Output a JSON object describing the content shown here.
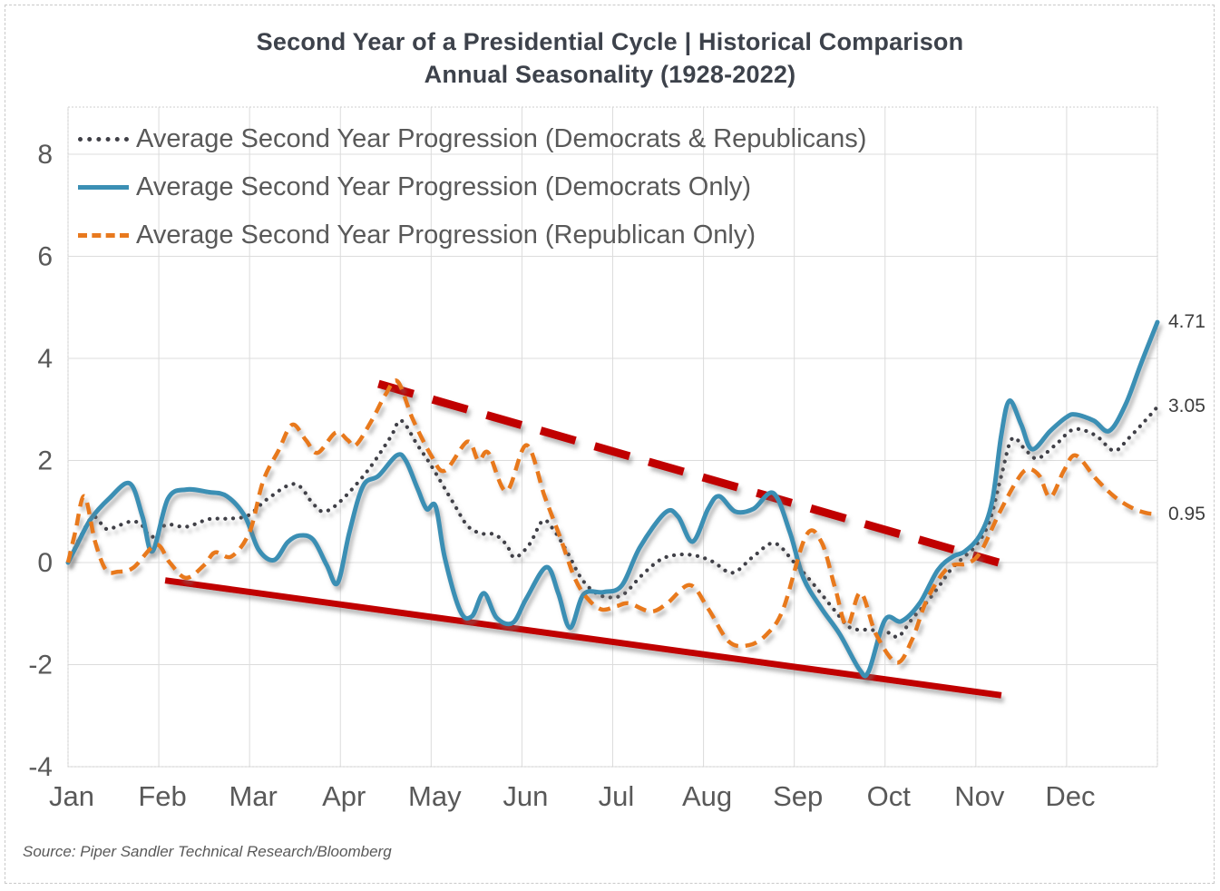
{
  "title": {
    "line1": "Second Year of a Presidential Cycle | Historical Comparison",
    "line2": "Annual Seasonality (1928-2022)"
  },
  "source": "Source: Piper Sandler Technical Research/Bloomberg",
  "colors": {
    "combined_line": "#3f3f46",
    "democrat_line": "#3b8fb4",
    "republican_line": "#e8791e",
    "trend_line": "#c00000",
    "grid": "#dcdcdc",
    "plot_border": "#cfcfcf",
    "axis_text": "#595959",
    "title_text": "#3d424b",
    "end_label_text": "#3c3c3c"
  },
  "chart_data": {
    "type": "line",
    "title": "Second Year of a Presidential Cycle | Historical Comparison — Annual Seasonality (1928-2022)",
    "grid": true,
    "legend_position": "top-left-inside",
    "x_axis": {
      "month_labels": [
        "Jan",
        "Feb",
        "Mar",
        "Apr",
        "May",
        "Jun",
        "Jul",
        "Aug",
        "Sep",
        "Oct",
        "Nov",
        "Dec"
      ],
      "range_months": [
        0,
        12
      ]
    },
    "y_axis": {
      "tick_labels": [
        "8",
        "6",
        "4",
        "2",
        "0",
        "-2",
        "-4"
      ],
      "tick_values": [
        8,
        6,
        4,
        2,
        0,
        -2,
        -4
      ],
      "range": [
        -4,
        8.9
      ]
    },
    "series": [
      {
        "name": "Average Second Year Progression (Democrats & Republicans)",
        "style": "dotted",
        "color": "#3f3f46",
        "end_label": "3.05",
        "points": [
          [
            0,
            0
          ],
          [
            0.15,
            0.55
          ],
          [
            0.28,
            0.9
          ],
          [
            0.42,
            0.66
          ],
          [
            0.55,
            0.72
          ],
          [
            0.68,
            0.8
          ],
          [
            0.8,
            0.76
          ],
          [
            0.92,
            0.5
          ],
          [
            1.08,
            0.74
          ],
          [
            1.3,
            0.7
          ],
          [
            1.55,
            0.85
          ],
          [
            1.75,
            0.86
          ],
          [
            1.98,
            0.92
          ],
          [
            2.2,
            1.25
          ],
          [
            2.5,
            1.54
          ],
          [
            2.7,
            1.15
          ],
          [
            2.82,
            1
          ],
          [
            3,
            1.2
          ],
          [
            3.3,
            1.8
          ],
          [
            3.55,
            2.45
          ],
          [
            3.67,
            2.78
          ],
          [
            3.85,
            2.3
          ],
          [
            4,
            1.9
          ],
          [
            4.25,
            1.15
          ],
          [
            4.4,
            0.72
          ],
          [
            4.55,
            0.57
          ],
          [
            4.7,
            0.55
          ],
          [
            4.83,
            0.35
          ],
          [
            4.92,
            0.1
          ],
          [
            5.08,
            0.35
          ],
          [
            5.23,
            0.82
          ],
          [
            5.35,
            0.64
          ],
          [
            5.5,
            0.2
          ],
          [
            5.65,
            -0.3
          ],
          [
            5.8,
            -0.58
          ],
          [
            5.95,
            -0.68
          ],
          [
            6.12,
            -0.62
          ],
          [
            6.32,
            -0.25
          ],
          [
            6.52,
            0.05
          ],
          [
            6.7,
            0.15
          ],
          [
            6.9,
            0.14
          ],
          [
            7.1,
            0.02
          ],
          [
            7.32,
            -0.2
          ],
          [
            7.55,
            0.12
          ],
          [
            7.78,
            0.38
          ],
          [
            8,
            0
          ],
          [
            8.2,
            -0.4
          ],
          [
            8.45,
            -0.95
          ],
          [
            8.62,
            -1.28
          ],
          [
            8.85,
            -1.32
          ],
          [
            9.05,
            -1.38
          ],
          [
            9.15,
            -1.45
          ],
          [
            9.3,
            -1.1
          ],
          [
            9.45,
            -0.8
          ],
          [
            9.6,
            -0.45
          ],
          [
            9.72,
            -0.15
          ],
          [
            9.85,
            0.08
          ],
          [
            10,
            0.33
          ],
          [
            10.15,
            0.8
          ],
          [
            10.28,
            1.7
          ],
          [
            10.4,
            2.43
          ],
          [
            10.55,
            2.2
          ],
          [
            10.68,
            2.04
          ],
          [
            10.88,
            2.31
          ],
          [
            11.08,
            2.61
          ],
          [
            11.32,
            2.49
          ],
          [
            11.52,
            2.19
          ],
          [
            11.68,
            2.43
          ],
          [
            11.85,
            2.75
          ],
          [
            12,
            3.05
          ]
        ]
      },
      {
        "name": "Average Second Year Progression (Democrats Only)",
        "style": "solid",
        "color": "#3b8fb4",
        "end_label": "4.71",
        "points": [
          [
            0,
            0
          ],
          [
            0.1,
            0.35
          ],
          [
            0.25,
            0.85
          ],
          [
            0.45,
            1.25
          ],
          [
            0.68,
            1.55
          ],
          [
            0.82,
            0.9
          ],
          [
            0.93,
            0.22
          ],
          [
            1.1,
            1.25
          ],
          [
            1.3,
            1.43
          ],
          [
            1.55,
            1.38
          ],
          [
            1.75,
            1.3
          ],
          [
            1.95,
            0.9
          ],
          [
            2.1,
            0.25
          ],
          [
            2.27,
            0.05
          ],
          [
            2.42,
            0.4
          ],
          [
            2.55,
            0.53
          ],
          [
            2.7,
            0.45
          ],
          [
            2.85,
            -0.05
          ],
          [
            2.97,
            -0.4
          ],
          [
            3.1,
            0.6
          ],
          [
            3.25,
            1.5
          ],
          [
            3.42,
            1.7
          ],
          [
            3.62,
            2.1
          ],
          [
            3.72,
            2
          ],
          [
            3.85,
            1.45
          ],
          [
            3.95,
            1.05
          ],
          [
            4.05,
            1.1
          ],
          [
            4.15,
            0.1
          ],
          [
            4.32,
            -0.95
          ],
          [
            4.45,
            -1.05
          ],
          [
            4.58,
            -0.6
          ],
          [
            4.72,
            -1.08
          ],
          [
            4.9,
            -1.18
          ],
          [
            5.05,
            -0.7
          ],
          [
            5.27,
            -0.09
          ],
          [
            5.4,
            -0.6
          ],
          [
            5.53,
            -1.28
          ],
          [
            5.68,
            -0.62
          ],
          [
            5.9,
            -0.58
          ],
          [
            6.1,
            -0.45
          ],
          [
            6.3,
            0.3
          ],
          [
            6.58,
            0.98
          ],
          [
            6.72,
            0.9
          ],
          [
            6.88,
            0.41
          ],
          [
            7.05,
            1.05
          ],
          [
            7.17,
            1.3
          ],
          [
            7.35,
            1
          ],
          [
            7.55,
            1.05
          ],
          [
            7.77,
            1.36
          ],
          [
            7.95,
            0.6
          ],
          [
            8.1,
            -0.3
          ],
          [
            8.3,
            -0.9
          ],
          [
            8.5,
            -1.4
          ],
          [
            8.72,
            -2.1
          ],
          [
            8.82,
            -2.13
          ],
          [
            9,
            -1.12
          ],
          [
            9.18,
            -1.15
          ],
          [
            9.38,
            -0.8
          ],
          [
            9.58,
            -0.15
          ],
          [
            9.75,
            0.12
          ],
          [
            9.88,
            0.22
          ],
          [
            10.05,
            0.55
          ],
          [
            10.18,
            1.2
          ],
          [
            10.28,
            2.5
          ],
          [
            10.37,
            3.17
          ],
          [
            10.5,
            2.7
          ],
          [
            10.62,
            2.22
          ],
          [
            10.82,
            2.58
          ],
          [
            11,
            2.85
          ],
          [
            11.1,
            2.9
          ],
          [
            11.3,
            2.78
          ],
          [
            11.47,
            2.58
          ],
          [
            11.65,
            3.1
          ],
          [
            11.82,
            3.9
          ],
          [
            12,
            4.71
          ]
        ]
      },
      {
        "name": "Average Second Year Progression (Republican Only)",
        "style": "dashed",
        "color": "#e8791e",
        "end_label": "0.95",
        "points": [
          [
            0,
            0
          ],
          [
            0.08,
            0.6
          ],
          [
            0.18,
            1.3
          ],
          [
            0.3,
            0.4
          ],
          [
            0.42,
            -0.15
          ],
          [
            0.55,
            -0.18
          ],
          [
            0.72,
            -0.1
          ],
          [
            0.97,
            0.35
          ],
          [
            1.12,
            0
          ],
          [
            1.3,
            -0.3
          ],
          [
            1.5,
            -0.05
          ],
          [
            1.62,
            0.2
          ],
          [
            1.8,
            0.12
          ],
          [
            2,
            0.6
          ],
          [
            2.15,
            1.6
          ],
          [
            2.32,
            2.2
          ],
          [
            2.47,
            2.7
          ],
          [
            2.62,
            2.4
          ],
          [
            2.75,
            2.15
          ],
          [
            2.95,
            2.55
          ],
          [
            3.08,
            2.4
          ],
          [
            3.17,
            2.3
          ],
          [
            3.35,
            2.8
          ],
          [
            3.5,
            3.3
          ],
          [
            3.63,
            3.55
          ],
          [
            3.8,
            2.8
          ],
          [
            4,
            2.1
          ],
          [
            4.15,
            1.8
          ],
          [
            4.4,
            2.37
          ],
          [
            4.52,
            2
          ],
          [
            4.63,
            2.15
          ],
          [
            4.83,
            1.4
          ],
          [
            5.05,
            2.3
          ],
          [
            5.25,
            1.3
          ],
          [
            5.42,
            0.5
          ],
          [
            5.58,
            -0.3
          ],
          [
            5.72,
            -0.7
          ],
          [
            5.88,
            -0.92
          ],
          [
            6.05,
            -0.85
          ],
          [
            6.18,
            -0.8
          ],
          [
            6.42,
            -0.96
          ],
          [
            6.6,
            -0.8
          ],
          [
            6.85,
            -0.44
          ],
          [
            7.05,
            -0.9
          ],
          [
            7.28,
            -1.55
          ],
          [
            7.5,
            -1.62
          ],
          [
            7.7,
            -1.4
          ],
          [
            7.88,
            -0.9
          ],
          [
            8.13,
            0.53
          ],
          [
            8.3,
            0.4
          ],
          [
            8.45,
            -0.5
          ],
          [
            8.58,
            -1.24
          ],
          [
            8.73,
            -0.59
          ],
          [
            8.9,
            -1.4
          ],
          [
            9.13,
            -1.96
          ],
          [
            9.3,
            -1.5
          ],
          [
            9.45,
            -0.77
          ],
          [
            9.62,
            -0.25
          ],
          [
            9.75,
            -0.05
          ],
          [
            9.9,
            -0.02
          ],
          [
            10.05,
            0.2
          ],
          [
            10.25,
            0.94
          ],
          [
            10.45,
            1.6
          ],
          [
            10.57,
            1.83
          ],
          [
            10.7,
            1.7
          ],
          [
            10.82,
            1.28
          ],
          [
            10.97,
            1.8
          ],
          [
            11.1,
            2.1
          ],
          [
            11.32,
            1.65
          ],
          [
            11.52,
            1.3
          ],
          [
            11.72,
            1.07
          ],
          [
            11.88,
            0.97
          ],
          [
            12,
            0.95
          ]
        ]
      }
    ],
    "trendlines": [
      {
        "name": "upper-resistance-trendline",
        "style": "dashed",
        "color": "#c00000",
        "points": [
          [
            3.42,
            3.5
          ],
          [
            10.25,
            0.0
          ]
        ]
      },
      {
        "name": "lower-support-trendline",
        "style": "solid",
        "color": "#c00000",
        "points": [
          [
            1.07,
            -0.35
          ],
          [
            10.28,
            -2.6
          ]
        ]
      }
    ]
  }
}
